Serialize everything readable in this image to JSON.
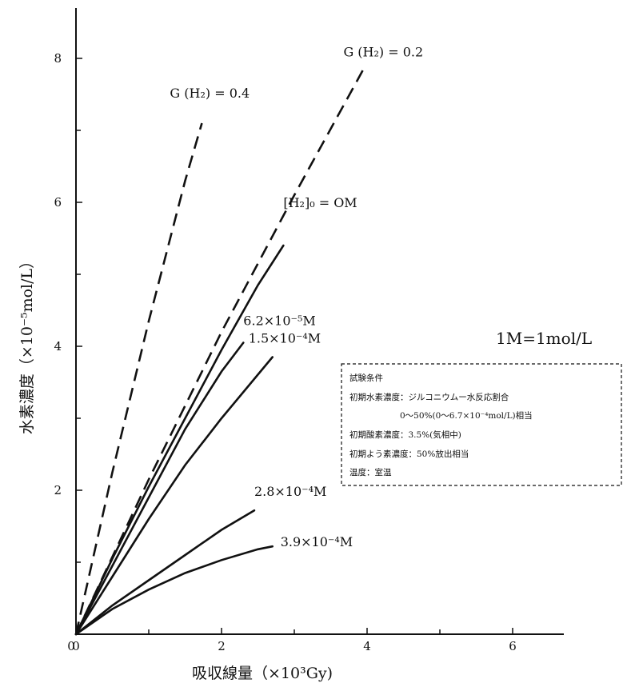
{
  "chart_data": {
    "type": "line",
    "xlabel": "吸収線量（×10³Gy)",
    "ylabel": "水素濃度（×10⁻⁵mol/L）",
    "xlim": [
      0,
      6.8
    ],
    "ylim": [
      0,
      8.8
    ],
    "x_ticks": [
      "0",
      "2",
      "4",
      "6"
    ],
    "y_ticks": [
      "2",
      "4",
      "6",
      "8"
    ],
    "grid": false,
    "series": [
      {
        "name": "G (H₂) = 0.4",
        "style": "dashed",
        "x": [
          0,
          0.5,
          1.0,
          1.5,
          1.73
        ],
        "y": [
          0,
          2.25,
          4.35,
          6.3,
          7.1
        ]
      },
      {
        "name": "G (H₂) = 0.2",
        "style": "dashed",
        "x": [
          0,
          1.0,
          2.0,
          3.0,
          3.95
        ],
        "y": [
          0,
          2.15,
          4.2,
          6.1,
          7.85
        ]
      },
      {
        "name": "[H₂]₀ = OM",
        "style": "solid",
        "x": [
          0,
          0.5,
          1.0,
          1.5,
          2.0,
          2.5,
          2.85
        ],
        "y": [
          0,
          1.05,
          2.05,
          3.0,
          3.95,
          4.85,
          5.4
        ]
      },
      {
        "name": "6.2×10⁻⁵M",
        "style": "solid",
        "x": [
          0,
          0.5,
          1.0,
          1.5,
          2.0,
          2.3
        ],
        "y": [
          0,
          0.95,
          1.9,
          2.85,
          3.65,
          4.05
        ]
      },
      {
        "name": "1.5×10⁻⁴M",
        "style": "solid",
        "x": [
          0,
          0.5,
          1.0,
          1.5,
          2.0,
          2.7
        ],
        "y": [
          0,
          0.8,
          1.6,
          2.35,
          3.0,
          3.85
        ]
      },
      {
        "name": "2.8×10⁻⁴M",
        "style": "solid",
        "x": [
          0,
          0.5,
          1.0,
          1.5,
          2.0,
          2.45
        ],
        "y": [
          0,
          0.4,
          0.75,
          1.1,
          1.45,
          1.72
        ]
      },
      {
        "name": "3.9×10⁻⁴M",
        "style": "solid",
        "x": [
          0,
          0.5,
          1.0,
          1.5,
          2.0,
          2.5,
          2.7
        ],
        "y": [
          0,
          0.35,
          0.62,
          0.85,
          1.03,
          1.18,
          1.22
        ]
      }
    ],
    "annotation": "1M=1mol/L",
    "conditions": {
      "title": "試験条件",
      "lines": [
        "初期水素濃度：ジルコニウムー水反応割合",
        "0～50%(0～6.7×10⁻⁴mol/L)相当",
        "初期酸素濃度：3.5%(気相中)",
        "初期よう素濃度：50%放出相当",
        "温度：室温"
      ]
    }
  }
}
